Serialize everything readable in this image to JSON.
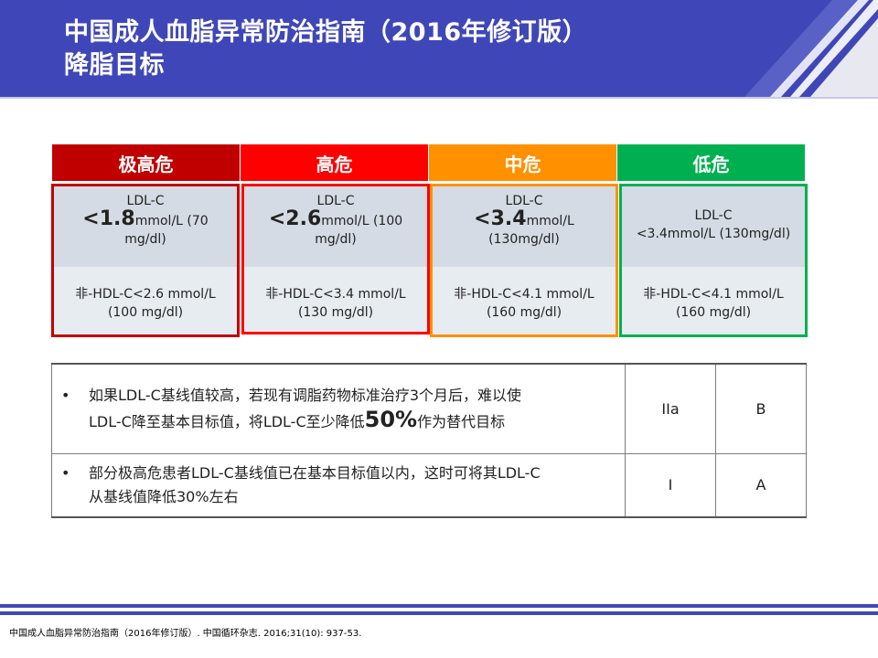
{
  "header": {
    "title_line1": "中国成人血脂异常防治指南（2016年修订版）",
    "title_line2": "降脂目标"
  },
  "colors": {
    "header_bg": "#3f47b8",
    "very_high": "#c00000",
    "high": "#ff0000",
    "medium": "#ff9000",
    "low": "#00b050"
  },
  "risk_groups": [
    {
      "name": "极高危",
      "ldl_label": "LDL-C",
      "ldl_prefix": "<",
      "ldl_value": "1.8",
      "ldl_unit_line1": "mmol/L (70",
      "ldl_unit_line2": "mg/dl)",
      "nonhdl_line1": "非-HDL-C<2.6 mmol/L",
      "nonhdl_line2": "(100 mg/dl)"
    },
    {
      "name": "高危",
      "ldl_label": "LDL-C",
      "ldl_prefix": "<",
      "ldl_value": "2.6",
      "ldl_unit_line1": "mmol/L (100",
      "ldl_unit_line2": "mg/dl)",
      "nonhdl_line1": "非-HDL-C<3.4 mmol/L",
      "nonhdl_line2": "(130 mg/dl)"
    },
    {
      "name": "中危",
      "ldl_label": "LDL-C",
      "ldl_prefix": "<",
      "ldl_value": "3.4",
      "ldl_unit_line1": "mmol/L",
      "ldl_unit_line2": "(130mg/dl)",
      "nonhdl_line1": "非-HDL-C<4.1 mmol/L",
      "nonhdl_line2": "(160 mg/dl)"
    },
    {
      "name": "低危",
      "ldl_label": "LDL-C",
      "ldl_line2": "<3.4mmol/L (130mg/dl)",
      "nonhdl_line1": "非-HDL-C<4.1 mmol/L",
      "nonhdl_line2": "(160 mg/dl)"
    }
  ],
  "recommendations": [
    {
      "bullet": "•",
      "text_line1": "如果LDL-C基线值较高，若现有调脂药物标准治疗3个月后，难以使",
      "text_line2_pre": "LDL-C降至基本目标值，将LDL-C至少降低",
      "text_line2_pct": "50%",
      "text_line2_post": "作为替代目标",
      "class": "IIa",
      "level": "B"
    },
    {
      "bullet": "•",
      "text_line1": "部分极高危患者LDL-C基线值已在基本目标值以内，这时可将其LDL-C",
      "text_line2": "从基线值降低30%左右",
      "class": "I",
      "level": "A"
    }
  ],
  "footer": {
    "citation": "中国成人血脂异常防治指南（2016年修订版）. 中国循环杂志. 2016;31(10): 937-53."
  }
}
